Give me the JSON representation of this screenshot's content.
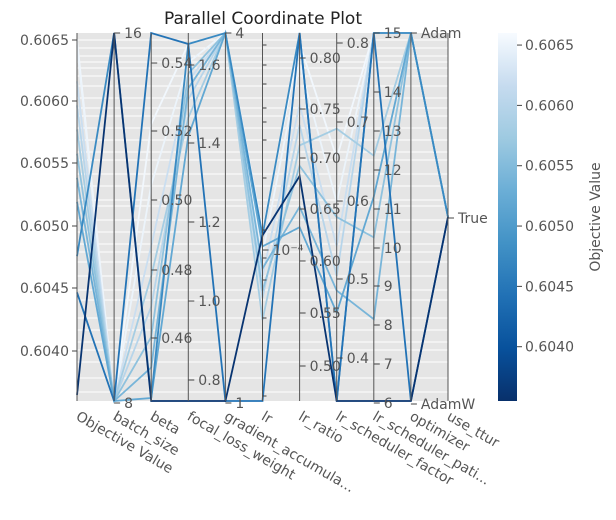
{
  "chart_data": {
    "type": "parallel-coordinates",
    "title": "Parallel Coordinate Plot",
    "background_color": "#e5e5e5",
    "grid": true,
    "colorbar": {
      "label": "Objective Value",
      "range": [
        0.60355,
        0.6066
      ],
      "ticks": [
        "0.6040",
        "0.6045",
        "0.6050",
        "0.6055",
        "0.6060",
        "0.6065"
      ],
      "colormap": "Blues_r",
      "stops": [
        "#08306b",
        "#08519c",
        "#2171b5",
        "#4292c6",
        "#6baed6",
        "#9ecae1",
        "#c6dbef",
        "#f7fbff"
      ]
    },
    "axes": [
      {
        "name": "Objective Value",
        "range": [
          0.60355,
          0.6066
        ],
        "tick_side": "left",
        "ticks": [
          "0.6040",
          "0.6045",
          "0.6050",
          "0.6055",
          "0.6060",
          "0.6065"
        ]
      },
      {
        "name": "batch_size",
        "range": [
          8,
          16
        ],
        "tick_side": "right",
        "ticks": [
          "8",
          "16"
        ]
      },
      {
        "name": "beta",
        "range": [
          0.429,
          0.55
        ],
        "tick_side": "right",
        "ticks": [
          "0.46",
          "0.48",
          "0.50",
          "0.52",
          "0.54"
        ]
      },
      {
        "name": "focal_loss_weight",
        "range": [
          0.73,
          1.73
        ],
        "tick_side": "right",
        "ticks": [
          "0.8",
          "1.0",
          "1.2",
          "1.4",
          "1.6"
        ]
      },
      {
        "name": "gradient_accumula...",
        "range": [
          1,
          4
        ],
        "tick_side": "right",
        "ticks": [
          "1",
          "4"
        ]
      },
      {
        "name": "lr",
        "range": [
          0,
          1
        ],
        "tick_side": "right",
        "ticks": [
          "10⁻⁴"
        ],
        "log": true
      },
      {
        "name": "lr_ratio",
        "range": [
          0.49,
          0.85
        ],
        "tick_side": "right",
        "ticks": [
          "0.50",
          "0.55",
          "0.60",
          "0.65",
          "0.70",
          "0.75",
          "0.80"
        ]
      },
      {
        "name": "lr_scheduler_factor",
        "range": [
          0.33,
          0.83
        ],
        "tick_side": "right",
        "ticks": [
          "0.4",
          "0.5",
          "0.6",
          "0.7",
          "0.8"
        ]
      },
      {
        "name": "lr_scheduler_pati...",
        "range": [
          6,
          15
        ],
        "tick_side": "right",
        "ticks": [
          "6",
          "7",
          "8",
          "9",
          "10",
          "11",
          "12",
          "13",
          "14",
          "15"
        ]
      },
      {
        "name": "optimizer",
        "range": [
          0,
          1
        ],
        "tick_side": "right",
        "ticks": [
          "AdamW",
          "Adam"
        ]
      },
      {
        "name": "use_ttur",
        "range": [
          0,
          1
        ],
        "tick_side": "right",
        "ticks": [
          "True"
        ]
      }
    ],
    "series": [
      {
        "objective": 0.60655,
        "values": [
          0.60655,
          8,
          0.52,
          1.7,
          4,
          0.46,
          0.84,
          0.66,
          15,
          1,
          0.5
        ]
      },
      {
        "objective": 0.6065,
        "values": [
          0.6065,
          8,
          0.5,
          1.65,
          4,
          0.4,
          0.82,
          0.6,
          15,
          1,
          0.5
        ]
      },
      {
        "objective": 0.6062,
        "values": [
          0.6062,
          8,
          0.48,
          1.6,
          4,
          0.34,
          0.78,
          0.54,
          15,
          1,
          0.5
        ]
      },
      {
        "objective": 0.606,
        "values": [
          0.606,
          8,
          0.46,
          1.55,
          4,
          0.28,
          0.76,
          0.5,
          15,
          1,
          0.5
        ]
      },
      {
        "objective": 0.6058,
        "values": [
          0.6058,
          8,
          0.47,
          1.5,
          4,
          0.22,
          0.74,
          0.7,
          12,
          1,
          0.5
        ]
      },
      {
        "objective": 0.6056,
        "values": [
          0.6056,
          8,
          0.45,
          1.62,
          4,
          0.3,
          0.72,
          0.58,
          10,
          1,
          0.5
        ]
      },
      {
        "objective": 0.6054,
        "values": [
          0.6054,
          8,
          0.44,
          1.58,
          4,
          0.36,
          0.68,
          0.48,
          8,
          1,
          0.5
        ]
      },
      {
        "objective": 0.6052,
        "values": [
          0.6052,
          8,
          0.43,
          1.45,
          4,
          0.42,
          0.66,
          0.45,
          11,
          1,
          0.5
        ]
      },
      {
        "objective": 0.60475,
        "values": [
          0.60475,
          16,
          0.43,
          1.7,
          4,
          0.45,
          0.85,
          0.33,
          15,
          1,
          0.5
        ]
      },
      {
        "objective": 0.60445,
        "values": [
          0.60445,
          8,
          0.55,
          1.7,
          1,
          0.0,
          0.85,
          0.33,
          15,
          0,
          0.5
        ]
      },
      {
        "objective": 0.6036,
        "values": [
          0.6036,
          16,
          0.429,
          0.73,
          1,
          0.45,
          0.71,
          0.33,
          6,
          0,
          0.5
        ]
      }
    ]
  }
}
